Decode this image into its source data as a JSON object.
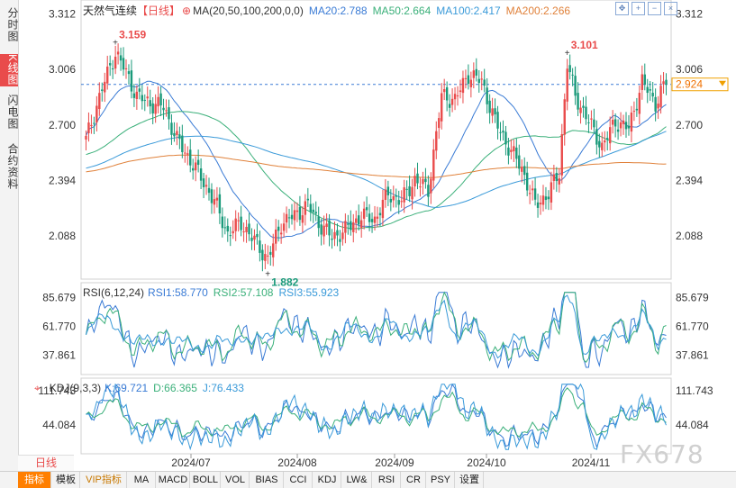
{
  "left_tabs": [
    "分时图",
    "K线图",
    "闪电图",
    "合约资料"
  ],
  "active_left_tab": 1,
  "header": {
    "instrument": "天然气连续",
    "period_tag": "【日线】",
    "indicator_label": "MA(20,50,100,200,0,0)",
    "ma20": "MA20:2.788",
    "ma50": "MA50:2.664",
    "ma100": "MA100:2.417",
    "ma200": "MA200:2.266"
  },
  "rsi_header": {
    "label": "RSI(6,12,24)",
    "rsi1": "RSI1:58.770",
    "rsi2": "RSI2:57.108",
    "rsi3": "RSI3:55.923"
  },
  "kdj_header": {
    "label": "KDJ(9,3,3)",
    "k": "K:69.721",
    "d": "D:66.365",
    "j": "J:76.433"
  },
  "period_label": "日线",
  "watermark": "FX678",
  "current_price": "2.924",
  "bottom_tabs": [
    "指标",
    "模板",
    "VIP指标",
    "MA",
    "MACD",
    "BOLL",
    "VOL",
    "BIAS",
    "CCI",
    "KDJ",
    "LW&",
    "RSI",
    "CR",
    "PSY",
    "设置"
  ],
  "colors": {
    "up": "#e94b4b",
    "down": "#1a9a7a",
    "ma20": "#3a7bd5",
    "ma50": "#3bb07a",
    "ma100": "#3a9ad9",
    "ma200": "#e0813a",
    "rsi1": "#3a7bd5",
    "rsi2": "#3bb07a",
    "rsi3": "#3a9ad9"
  },
  "chart_data": {
    "type": "candlestick",
    "x_labels": [
      "2024/07",
      "2024/08",
      "2024/09",
      "2024/10",
      "2024/11"
    ],
    "y_ticks": [
      "3.312",
      "3.006",
      "2.700",
      "2.394",
      "2.088"
    ],
    "ylim": [
      1.85,
      3.33
    ],
    "annotations": [
      {
        "label": "3.159",
        "value": 3.159
      },
      {
        "label": "3.101",
        "value": 3.101
      },
      {
        "label": "1.882",
        "value": 1.882
      }
    ],
    "rsi_ticks": [
      "85.679",
      "61.770",
      "37.861"
    ],
    "kdj_ticks": [
      "111.743",
      "44.084"
    ]
  }
}
